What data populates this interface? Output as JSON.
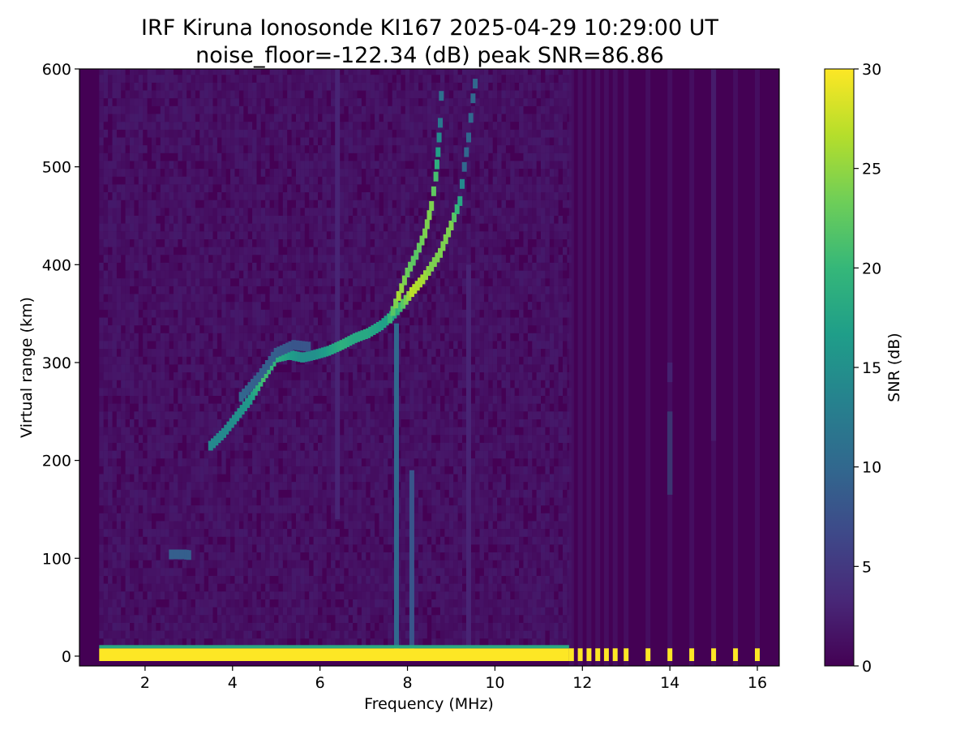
{
  "chart_data": {
    "type": "heatmap",
    "title": "IRF Kiruna Ionosonde KI167 2025-04-29 10:29:00  UT",
    "subtitle": "noise_floor=-122.34 (dB) peak SNR=86.86",
    "xlabel": "Frequency (MHz)",
    "ylabel": "Virtual range (km)",
    "xlim": [
      0.5,
      16.5
    ],
    "ylim": [
      -10,
      600
    ],
    "xticks": [
      2,
      4,
      6,
      8,
      10,
      12,
      14,
      16
    ],
    "yticks": [
      0,
      100,
      200,
      300,
      400,
      500,
      600
    ],
    "grid": false,
    "colorbar": {
      "label": "SNR (dB)",
      "range": [
        0,
        30
      ],
      "ticks": [
        0,
        5,
        10,
        15,
        20,
        25,
        30
      ],
      "colormap": "viridis",
      "colors": [
        "#440154",
        "#482878",
        "#3e4989",
        "#31688e",
        "#26828e",
        "#1f9e89",
        "#35b779",
        "#6ece58",
        "#b5de2b",
        "#fde725"
      ]
    },
    "background_snr": 1.5,
    "continuous_sweep_range_mhz": [
      0.95,
      11.7
    ],
    "stepped_frequencies_mhz": [
      11.75,
      11.95,
      12.15,
      12.35,
      12.55,
      12.75,
      13.0,
      13.5,
      14.0,
      14.5,
      15.0,
      15.5,
      16.0
    ],
    "ground_echo": {
      "range_km": [
        -5,
        8
      ],
      "snr": 30
    },
    "echo_traces": [
      {
        "trace": "F-layer main trace",
        "points": [
          {
            "f": 3.5,
            "r": 215,
            "snr": 14
          },
          {
            "f": 3.8,
            "r": 228,
            "snr": 14
          },
          {
            "f": 4.1,
            "r": 245,
            "snr": 15
          },
          {
            "f": 4.4,
            "r": 262,
            "snr": 16
          },
          {
            "f": 4.7,
            "r": 285,
            "snr": 21
          },
          {
            "f": 5.0,
            "r": 305,
            "snr": 19
          },
          {
            "f": 5.3,
            "r": 308,
            "snr": 17
          },
          {
            "f": 5.6,
            "r": 305,
            "snr": 15
          },
          {
            "f": 5.9,
            "r": 308,
            "snr": 15
          },
          {
            "f": 6.2,
            "r": 312,
            "snr": 17
          },
          {
            "f": 6.5,
            "r": 318,
            "snr": 19
          },
          {
            "f": 6.8,
            "r": 325,
            "snr": 18
          },
          {
            "f": 7.1,
            "r": 330,
            "snr": 18
          },
          {
            "f": 7.4,
            "r": 338,
            "snr": 17
          },
          {
            "f": 7.7,
            "r": 350,
            "snr": 17
          },
          {
            "f": 7.9,
            "r": 360,
            "snr": 22
          },
          {
            "f": 8.1,
            "r": 372,
            "snr": 27
          },
          {
            "f": 8.35,
            "r": 385,
            "snr": 26
          },
          {
            "f": 8.55,
            "r": 398,
            "snr": 24
          },
          {
            "f": 8.75,
            "r": 412,
            "snr": 24
          },
          {
            "f": 9.0,
            "r": 440,
            "snr": 24
          },
          {
            "f": 9.2,
            "r": 465,
            "snr": 18
          },
          {
            "f": 9.3,
            "r": 500,
            "snr": 10
          },
          {
            "f": 9.4,
            "r": 530,
            "snr": 10
          },
          {
            "f": 9.5,
            "r": 570,
            "snr": 10
          },
          {
            "f": 9.6,
            "r": 600,
            "snr": 10
          }
        ]
      },
      {
        "trace": "F-layer upper trace",
        "points": [
          {
            "f": 7.6,
            "r": 345,
            "snr": 20
          },
          {
            "f": 7.8,
            "r": 368,
            "snr": 26
          },
          {
            "f": 8.0,
            "r": 392,
            "snr": 23
          },
          {
            "f": 8.2,
            "r": 410,
            "snr": 22
          },
          {
            "f": 8.4,
            "r": 432,
            "snr": 24
          },
          {
            "f": 8.55,
            "r": 460,
            "snr": 24
          },
          {
            "f": 8.65,
            "r": 490,
            "snr": 21
          },
          {
            "f": 8.7,
            "r": 515,
            "snr": 17
          },
          {
            "f": 8.75,
            "r": 545,
            "snr": 12
          },
          {
            "f": 8.8,
            "r": 600,
            "snr": 10
          }
        ]
      },
      {
        "trace": "faint lower F trace",
        "points": [
          {
            "f": 4.2,
            "r": 265,
            "snr": 10
          },
          {
            "f": 4.6,
            "r": 285,
            "snr": 9
          },
          {
            "f": 5.0,
            "r": 310,
            "snr": 9
          },
          {
            "f": 5.4,
            "r": 318,
            "snr": 8
          },
          {
            "f": 5.8,
            "r": 316,
            "snr": 8
          }
        ]
      },
      {
        "trace": "E-layer trace",
        "points": [
          {
            "f": 2.6,
            "r": 104,
            "snr": 9
          },
          {
            "f": 2.9,
            "r": 104,
            "snr": 9
          },
          {
            "f": 3.05,
            "r": 103,
            "snr": 9
          }
        ]
      }
    ],
    "vertical_streaks": [
      {
        "f": 7.75,
        "range_km": [
          0,
          340
        ],
        "snr": 10
      },
      {
        "f": 8.1,
        "range_km": [
          0,
          190
        ],
        "snr": 8
      },
      {
        "f": 14.0,
        "range_km": [
          165,
          250
        ],
        "snr": 13
      },
      {
        "f": 14.0,
        "range_km": [
          280,
          300
        ],
        "snr": 6
      },
      {
        "f": 15.0,
        "range_km": [
          220,
          600
        ],
        "snr": 4
      },
      {
        "f": 9.4,
        "range_km": [
          0,
          400
        ],
        "snr": 3
      },
      {
        "f": 6.4,
        "range_km": [
          140,
          600
        ],
        "snr": 3
      }
    ]
  }
}
